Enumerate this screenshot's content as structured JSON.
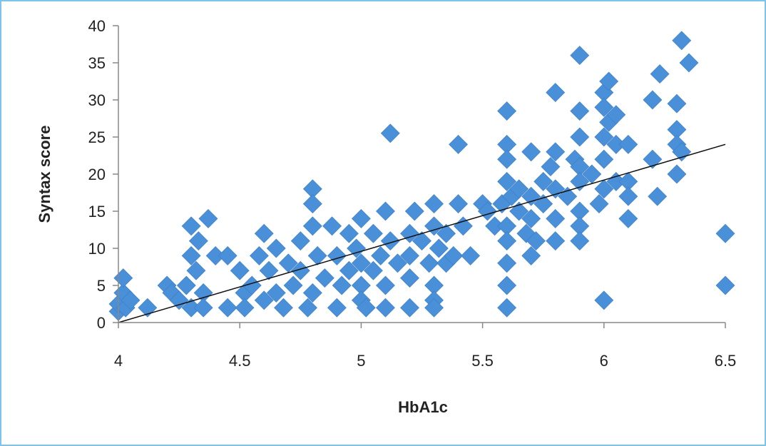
{
  "chart_data": {
    "type": "scatter",
    "title": "",
    "xlabel": "HbA1c",
    "ylabel": "Syntax score",
    "xlim": [
      4,
      6.5
    ],
    "ylim": [
      0,
      40
    ],
    "x_ticks": [
      "4",
      "4.5",
      "5",
      "5.5",
      "6",
      "6.5"
    ],
    "y_ticks": [
      "0",
      "5",
      "10",
      "15",
      "20",
      "25",
      "30",
      "35",
      "40"
    ],
    "marker_color": "#4a90d9",
    "trendline": {
      "x": [
        4.0,
        6.5
      ],
      "y": [
        0,
        24
      ]
    },
    "series": [
      {
        "points": [
          [
            4.0,
            1.5
          ],
          [
            4.0,
            2.5
          ],
          [
            4.02,
            4
          ],
          [
            4.02,
            6
          ],
          [
            4.03,
            2
          ],
          [
            4.05,
            3
          ],
          [
            4.12,
            2
          ],
          [
            4.2,
            5
          ],
          [
            4.22,
            4
          ],
          [
            4.25,
            3
          ],
          [
            4.28,
            5
          ],
          [
            4.3,
            13
          ],
          [
            4.3,
            9
          ],
          [
            4.3,
            2
          ],
          [
            4.32,
            7
          ],
          [
            4.33,
            11
          ],
          [
            4.35,
            4
          ],
          [
            4.35,
            2
          ],
          [
            4.37,
            14
          ],
          [
            4.4,
            9
          ],
          [
            4.45,
            9
          ],
          [
            4.45,
            2
          ],
          [
            4.5,
            7
          ],
          [
            4.52,
            4
          ],
          [
            4.52,
            2
          ],
          [
            4.55,
            5
          ],
          [
            4.58,
            9
          ],
          [
            4.6,
            12
          ],
          [
            4.6,
            3
          ],
          [
            4.62,
            7
          ],
          [
            4.65,
            10
          ],
          [
            4.65,
            4
          ],
          [
            4.68,
            2
          ],
          [
            4.7,
            8
          ],
          [
            4.72,
            5
          ],
          [
            4.75,
            11
          ],
          [
            4.75,
            7
          ],
          [
            4.78,
            2
          ],
          [
            4.8,
            18
          ],
          [
            4.8,
            16
          ],
          [
            4.8,
            13
          ],
          [
            4.8,
            4
          ],
          [
            4.82,
            9
          ],
          [
            4.85,
            6
          ],
          [
            4.88,
            13
          ],
          [
            4.9,
            9
          ],
          [
            4.9,
            2
          ],
          [
            4.92,
            5
          ],
          [
            4.95,
            7
          ],
          [
            4.95,
            12
          ],
          [
            4.98,
            10
          ],
          [
            5.0,
            14
          ],
          [
            5.0,
            8
          ],
          [
            5.0,
            5
          ],
          [
            5.0,
            3
          ],
          [
            5.02,
            2
          ],
          [
            5.05,
            12
          ],
          [
            5.05,
            7
          ],
          [
            5.08,
            9
          ],
          [
            5.1,
            15
          ],
          [
            5.1,
            5
          ],
          [
            5.1,
            2
          ],
          [
            5.12,
            25.5
          ],
          [
            5.12,
            11
          ],
          [
            5.15,
            8
          ],
          [
            5.2,
            12
          ],
          [
            5.2,
            9
          ],
          [
            5.2,
            6
          ],
          [
            5.2,
            2
          ],
          [
            5.22,
            15
          ],
          [
            5.25,
            11
          ],
          [
            5.28,
            8
          ],
          [
            5.3,
            16
          ],
          [
            5.3,
            13
          ],
          [
            5.3,
            5
          ],
          [
            5.3,
            3
          ],
          [
            5.3,
            2
          ],
          [
            5.32,
            10
          ],
          [
            5.35,
            12
          ],
          [
            5.35,
            8
          ],
          [
            5.38,
            9
          ],
          [
            5.4,
            24
          ],
          [
            5.4,
            16
          ],
          [
            5.42,
            13
          ],
          [
            5.45,
            9
          ],
          [
            5.5,
            16
          ],
          [
            5.52,
            15
          ],
          [
            5.55,
            13
          ],
          [
            5.58,
            16
          ],
          [
            5.6,
            28.5
          ],
          [
            5.6,
            24
          ],
          [
            5.6,
            22
          ],
          [
            5.6,
            19
          ],
          [
            5.6,
            13
          ],
          [
            5.6,
            11
          ],
          [
            5.6,
            8
          ],
          [
            5.6,
            5
          ],
          [
            5.6,
            2
          ],
          [
            5.62,
            17
          ],
          [
            5.65,
            18
          ],
          [
            5.65,
            15
          ],
          [
            5.68,
            12
          ],
          [
            5.7,
            23
          ],
          [
            5.7,
            17
          ],
          [
            5.7,
            14
          ],
          [
            5.7,
            9
          ],
          [
            5.72,
            11
          ],
          [
            5.75,
            19
          ],
          [
            5.75,
            16
          ],
          [
            5.78,
            21
          ],
          [
            5.8,
            31
          ],
          [
            5.8,
            23
          ],
          [
            5.8,
            18
          ],
          [
            5.8,
            14
          ],
          [
            5.8,
            11
          ],
          [
            5.85,
            17
          ],
          [
            5.88,
            22
          ],
          [
            5.9,
            36
          ],
          [
            5.9,
            28.5
          ],
          [
            5.9,
            25
          ],
          [
            5.9,
            21
          ],
          [
            5.9,
            19
          ],
          [
            5.9,
            15
          ],
          [
            5.9,
            13
          ],
          [
            5.9,
            11
          ],
          [
            5.95,
            20
          ],
          [
            5.98,
            16
          ],
          [
            6.0,
            31
          ],
          [
            6.0,
            29
          ],
          [
            6.0,
            25
          ],
          [
            6.0,
            22
          ],
          [
            6.0,
            18
          ],
          [
            6.0,
            3
          ],
          [
            6.02,
            32.5
          ],
          [
            6.02,
            27
          ],
          [
            6.05,
            28
          ],
          [
            6.05,
            24
          ],
          [
            6.05,
            19
          ],
          [
            6.1,
            24
          ],
          [
            6.1,
            19
          ],
          [
            6.1,
            17
          ],
          [
            6.1,
            14
          ],
          [
            6.2,
            30
          ],
          [
            6.2,
            22
          ],
          [
            6.22,
            17
          ],
          [
            6.23,
            33.5
          ],
          [
            6.3,
            29.5
          ],
          [
            6.3,
            26
          ],
          [
            6.3,
            24
          ],
          [
            6.3,
            20
          ],
          [
            6.32,
            38
          ],
          [
            6.32,
            23
          ],
          [
            6.35,
            35
          ],
          [
            6.5,
            12
          ],
          [
            6.5,
            5
          ]
        ]
      }
    ]
  }
}
